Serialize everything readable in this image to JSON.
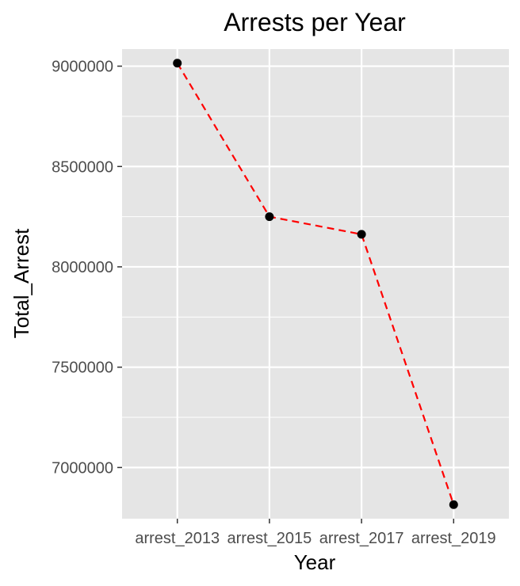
{
  "chart_data": {
    "type": "line",
    "title": "Arrests per Year",
    "xlabel": "Year",
    "ylabel": "Total_Arrest",
    "categories": [
      "arrest_2013",
      "arrest_2015",
      "arrest_2017",
      "arrest_2019"
    ],
    "series": [
      {
        "values": [
          9015000,
          8250000,
          8162000,
          6815000
        ]
      }
    ],
    "y_ticks": [
      "7000000",
      "7500000",
      "8000000",
      "8500000",
      "9000000"
    ],
    "y_tick_values": [
      7000000,
      7500000,
      8000000,
      8500000,
      9000000
    ],
    "ylim": [
      6745000,
      9085000
    ],
    "grid": true,
    "line_style": "dashed",
    "line_color": "#ff0000",
    "point_color": "#000000",
    "panel_background": "#e5e5e5"
  }
}
